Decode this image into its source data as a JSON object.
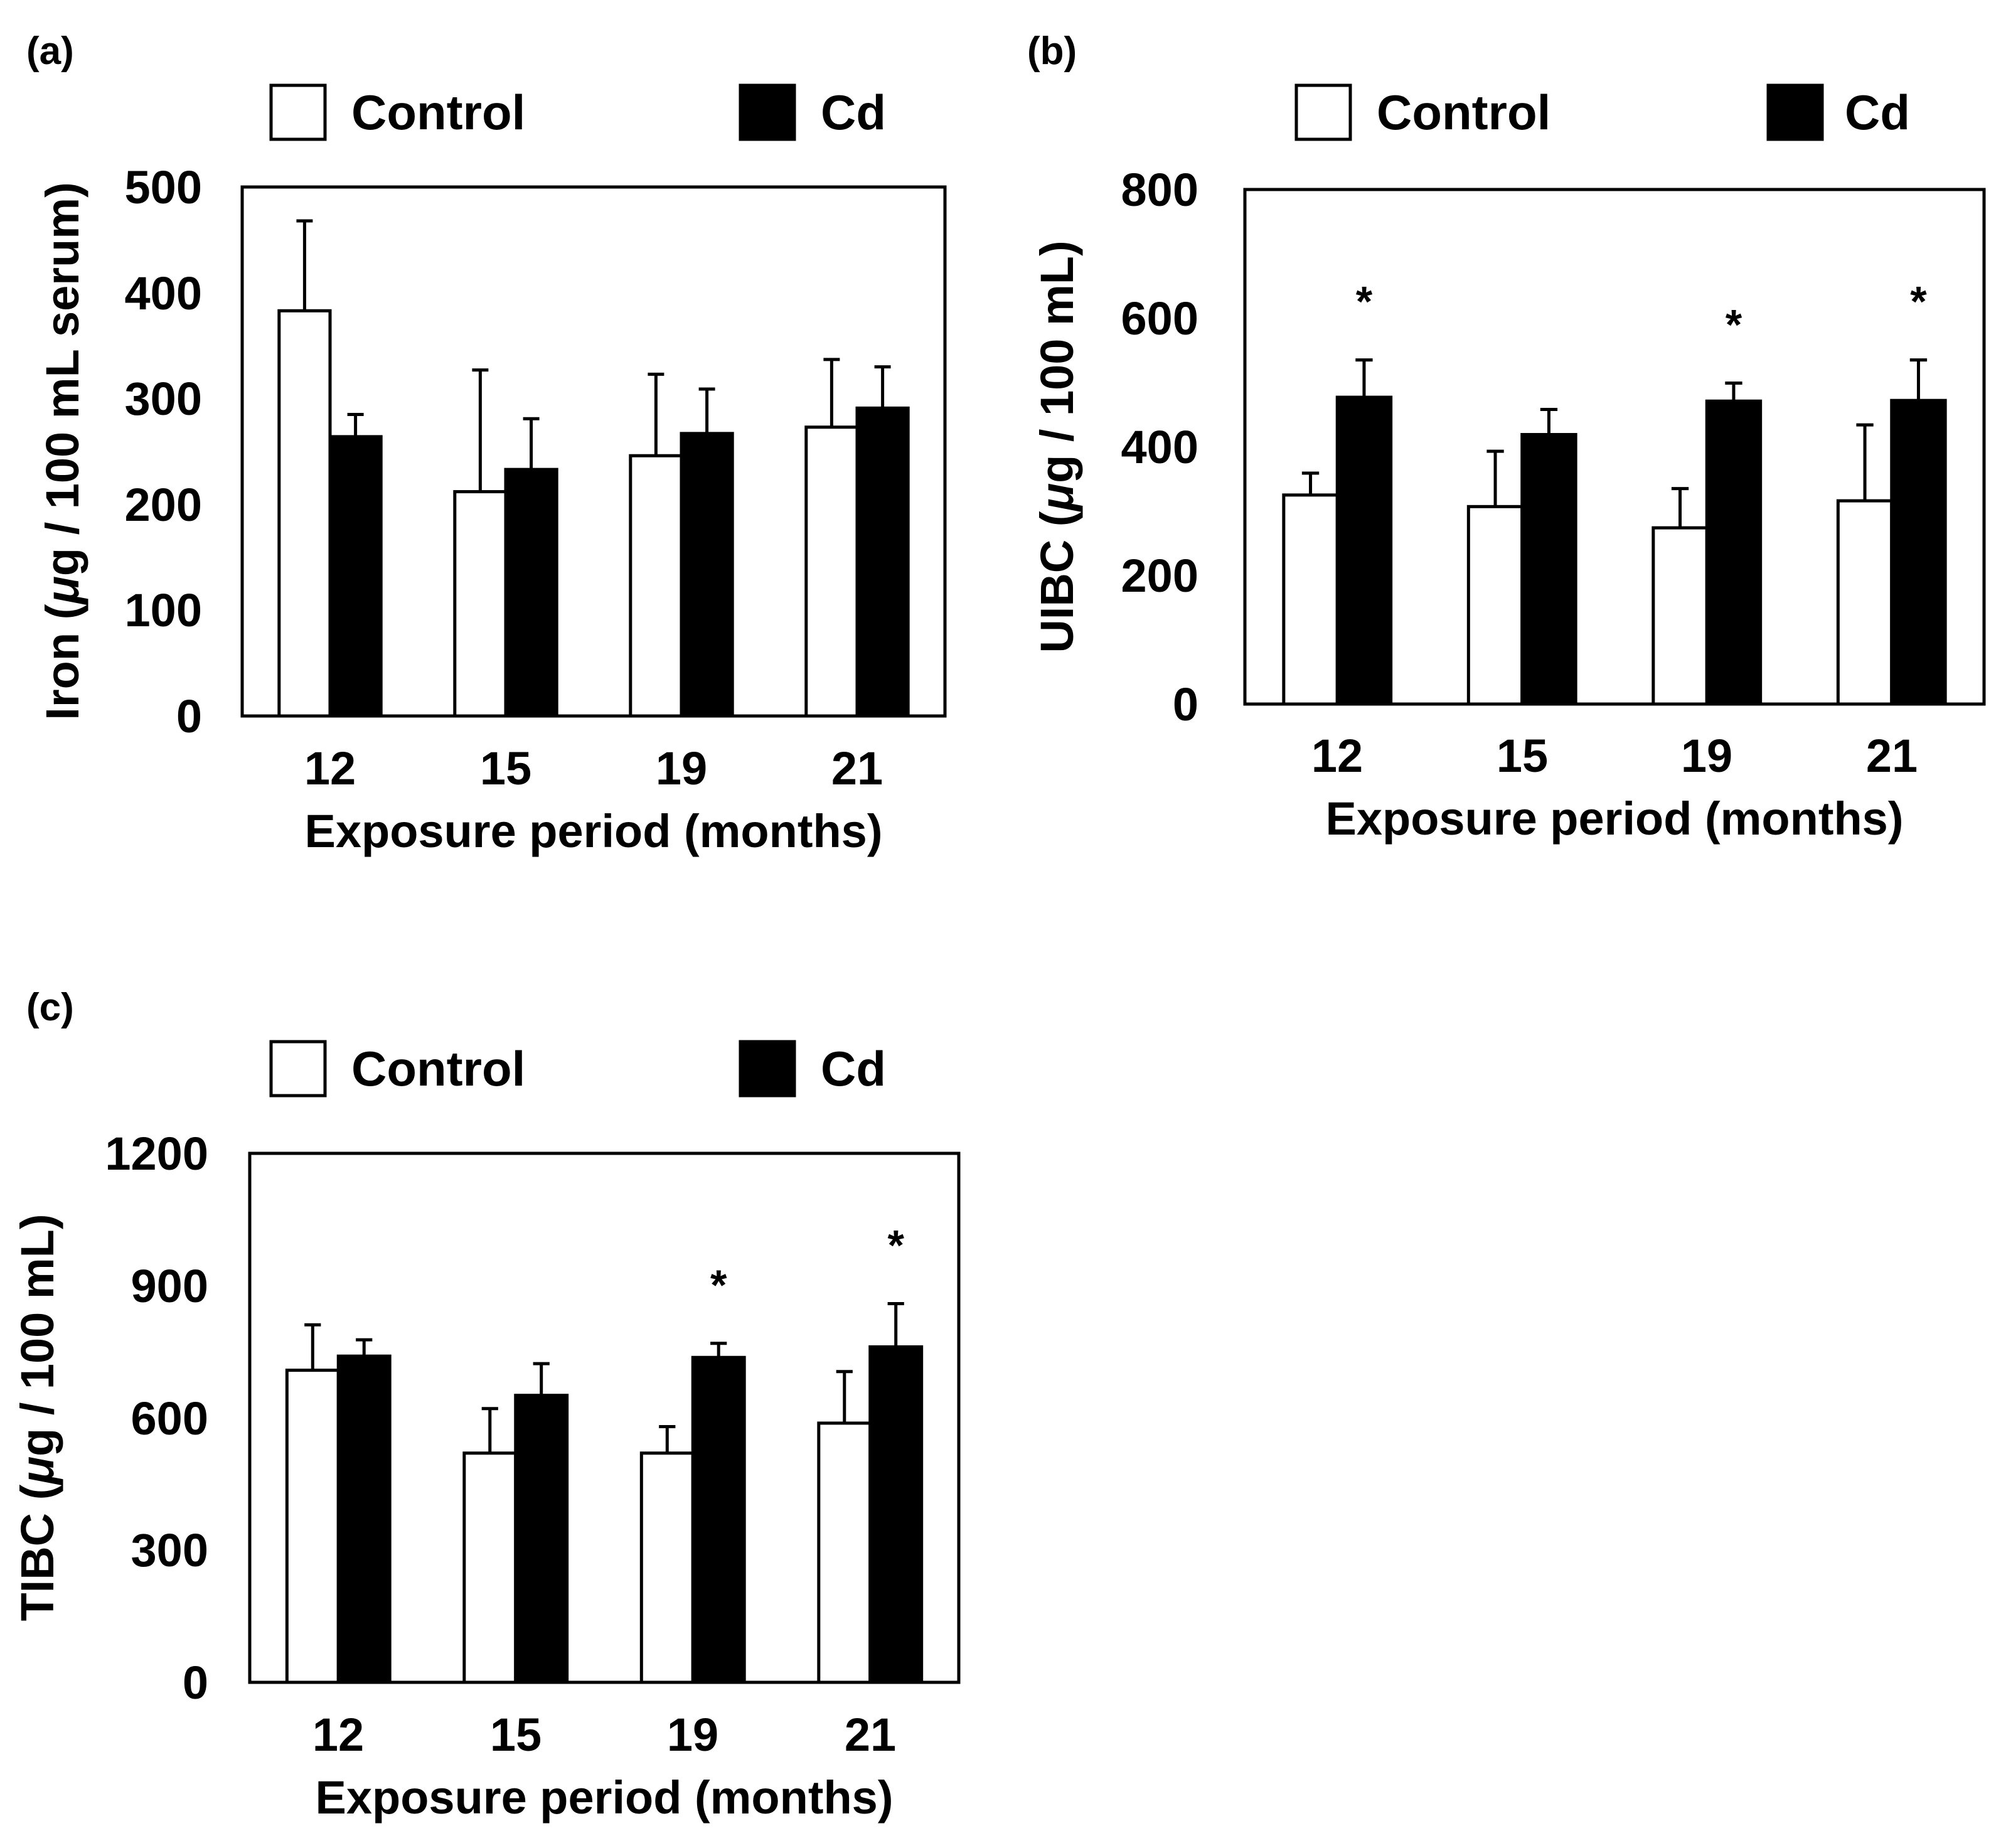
{
  "figure": {
    "background": "#ffffff",
    "control_color": "#ffffff",
    "cd_color": "#000000",
    "stroke_color": "#000000"
  },
  "chart_data": [
    {
      "panel_label": "(a)",
      "type": "bar",
      "categories": [
        "12",
        "15",
        "19",
        "21"
      ],
      "xlabel": "Exposure period (months)",
      "ylabel_prefix": "Iron (",
      "ylabel_unit_symbol": "μ",
      "ylabel_suffix": "g / 100 mL serum)",
      "ylim": [
        0,
        500
      ],
      "yticks": [
        0,
        100,
        200,
        300,
        400,
        500
      ],
      "legend": [
        "Control",
        "Cd"
      ],
      "series": [
        {
          "name": "Control",
          "values": [
            383,
            212,
            246,
            273
          ],
          "errors": [
            85,
            115,
            77,
            64
          ]
        },
        {
          "name": "Cd",
          "values": [
            264,
            233,
            267,
            291
          ],
          "errors": [
            21,
            48,
            42,
            39
          ]
        }
      ],
      "significance": [
        {
          "series": "Cd",
          "category_index": 0,
          "mark": ""
        },
        {
          "series": "Cd",
          "category_index": 1,
          "mark": ""
        },
        {
          "series": "Cd",
          "category_index": 2,
          "mark": ""
        },
        {
          "series": "Cd",
          "category_index": 3,
          "mark": ""
        }
      ]
    },
    {
      "panel_label": "(b)",
      "type": "bar",
      "categories": [
        "12",
        "15",
        "19",
        "21"
      ],
      "xlabel": "Exposure period (months)",
      "ylabel_prefix": "UIBC (",
      "ylabel_unit_symbol": "μ",
      "ylabel_suffix": "g / 100 mL)",
      "ylim": [
        0,
        800
      ],
      "yticks": [
        0,
        200,
        400,
        600,
        800
      ],
      "legend": [
        "Control",
        "Cd"
      ],
      "series": [
        {
          "name": "Control",
          "values": [
            325,
            307,
            274,
            316
          ],
          "errors": [
            34,
            86,
            61,
            118
          ]
        },
        {
          "name": "Cd",
          "values": [
            477,
            419,
            471,
            472
          ],
          "errors": [
            58,
            39,
            28,
            63
          ]
        }
      ],
      "significance": [
        {
          "series": "Cd",
          "category_index": 0,
          "mark": "*"
        },
        {
          "series": "Cd",
          "category_index": 1,
          "mark": ""
        },
        {
          "series": "Cd",
          "category_index": 2,
          "mark": "*"
        },
        {
          "series": "Cd",
          "category_index": 3,
          "mark": "*"
        }
      ]
    },
    {
      "panel_label": "(c)",
      "type": "bar",
      "categories": [
        "12",
        "15",
        "19",
        "21"
      ],
      "xlabel": "Exposure period (months)",
      "ylabel_prefix": "TIBC (",
      "ylabel_unit_symbol": "μ",
      "ylabel_suffix": "g / 100 mL)",
      "ylim": [
        0,
        1200
      ],
      "yticks": [
        0,
        300,
        600,
        900,
        1200
      ],
      "legend": [
        "Control",
        "Cd"
      ],
      "series": [
        {
          "name": "Control",
          "values": [
            708,
            520,
            520,
            588
          ],
          "errors": [
            103,
            101,
            60,
            117
          ]
        },
        {
          "name": "Cd",
          "values": [
            740,
            651,
            737,
            761
          ],
          "errors": [
            37,
            72,
            32,
            98
          ]
        }
      ],
      "significance": [
        {
          "series": "Cd",
          "category_index": 0,
          "mark": ""
        },
        {
          "series": "Cd",
          "category_index": 1,
          "mark": ""
        },
        {
          "series": "Cd",
          "category_index": 2,
          "mark": "*"
        },
        {
          "series": "Cd",
          "category_index": 3,
          "mark": "*"
        }
      ]
    }
  ]
}
